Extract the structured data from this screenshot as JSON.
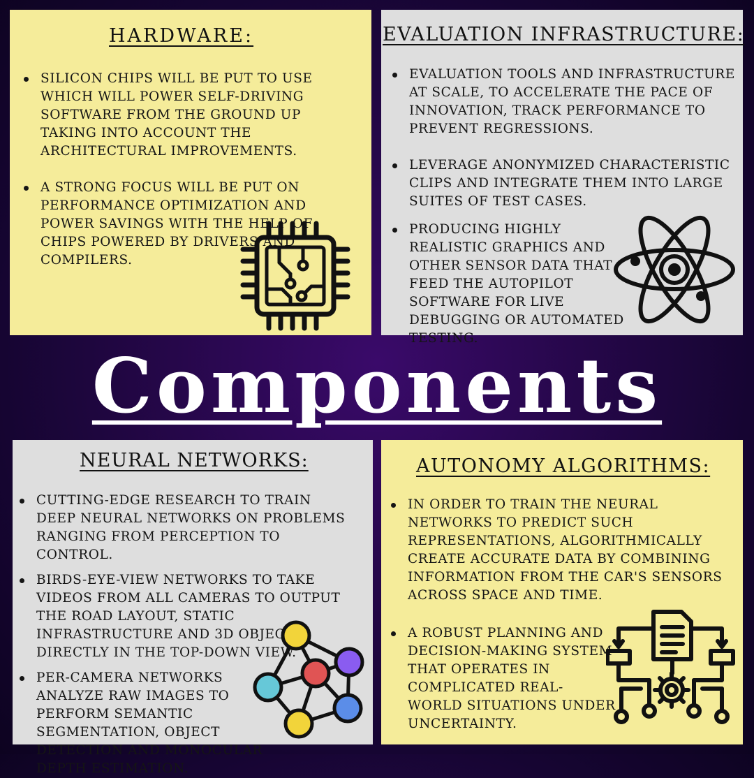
{
  "main_title": "Components",
  "hardware": {
    "title": "HARDWARE:",
    "bullets": [
      "SILICON CHIPS WILL BE PUT TO USE WHICH WILL POWER SELF-DRIVING SOFTWARE FROM THE GROUND UP TAKING INTO ACCOUNT THE ARCHITECTURAL IMPROVEMENTS.",
      "A STRONG FOCUS WILL BE PUT ON PERFORMANCE OPTIMIZATION AND POWER SAVINGS WITH THE HELP OF CHIPS POWERED BY DRIVERS AND COMPILERS."
    ],
    "icon": "microchip-icon"
  },
  "evaluation": {
    "title": "EVALUATION INFRASTRUCTURE:",
    "bullets": [
      "EVALUATION TOOLS AND INFRASTRUCTURE AT SCALE, TO ACCELERATE THE PACE OF INNOVATION, TRACK PERFORMANCE TO PREVENT REGRESSIONS.",
      "LEVERAGE ANONYMIZED CHARACTERISTIC CLIPS AND INTEGRATE THEM INTO LARGE SUITES OF TEST CASES.",
      "PRODUCING HIGHLY REALISTIC GRAPHICS AND OTHER SENSOR DATA THAT FEED THE AUTOPILOT SOFTWARE FOR LIVE DEBUGGING OR AUTOMATED TESTING."
    ],
    "icon": "atom-icon"
  },
  "neural": {
    "title": "NEURAL NETWORKS:",
    "bullets": [
      "CUTTING-EDGE RESEARCH TO TRAIN DEEP NEURAL NETWORKS ON PROBLEMS RANGING FROM PERCEPTION TO CONTROL.",
      "BIRDS-EYE-VIEW NETWORKS TO TAKE VIDEOS FROM ALL CAMERAS TO OUTPUT THE ROAD LAYOUT, STATIC INFRASTRUCTURE AND 3D OBJECTS DIRECTLY IN THE TOP-DOWN VIEW.",
      "PER-CAMERA NETWORKS ANALYZE RAW IMAGES TO PERFORM SEMANTIC SEGMENTATION, OBJECT DETECTION AND MONOCULAR DEPTH ESTIMATION."
    ],
    "icon": "network-graph-icon",
    "node_colors": [
      "#f2d43a",
      "#8a5cf0",
      "#e05454",
      "#66c8d8",
      "#5b8de8",
      "#f2d43a"
    ]
  },
  "autonomy": {
    "title": "AUTONOMY ALGORITHMS:",
    "bullets": [
      "IN ORDER TO TRAIN THE NEURAL NETWORKS TO PREDICT SUCH REPRESENTATIONS, ALGORITHMICALLY CREATE ACCURATE DATA BY COMBINING INFORMATION FROM THE CAR'S SENSORS ACROSS SPACE AND TIME.",
      "A ROBUST PLANNING AND DECISION-MAKING SYSTEM THAT OPERATES IN COMPLICATED REAL-WORLD SITUATIONS UNDER UNCERTAINTY."
    ],
    "icon": "algorithm-flow-icon"
  },
  "colors": {
    "panel_yellow": "#f5ec9a",
    "panel_grey": "#dedede",
    "background": "#26074a",
    "title_text": "#ffffff"
  }
}
